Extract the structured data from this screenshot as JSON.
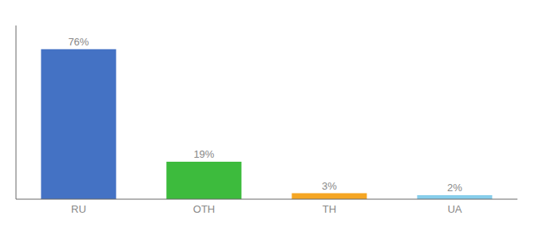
{
  "chart_data": {
    "type": "bar",
    "categories": [
      "RU",
      "OTH",
      "TH",
      "UA"
    ],
    "values": [
      76,
      19,
      3,
      2
    ],
    "value_labels": [
      "76%",
      "19%",
      "3%",
      "2%"
    ],
    "colors": [
      "#4472c4",
      "#3dbb3d",
      "#f5a623",
      "#87ceeb"
    ],
    "ylim": [
      0,
      88
    ],
    "data_labels": true,
    "tick_labels": "x",
    "grid": false
  }
}
